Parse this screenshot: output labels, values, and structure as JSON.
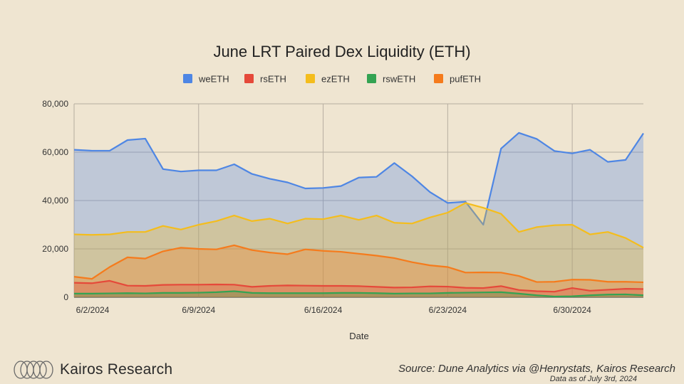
{
  "chart_data": {
    "type": "area",
    "title": "June LRT Paired Dex Liquidity (ETH)",
    "xlabel": "Date",
    "ylabel": "",
    "ylim": [
      0,
      80000
    ],
    "yticks": [
      0,
      20000,
      40000,
      60000,
      80000
    ],
    "ytick_labels": [
      "0",
      "20,000",
      "40,000",
      "60,000",
      "80,000"
    ],
    "xtick_labels": [
      "6/2/2024",
      "6/9/2024",
      "6/16/2024",
      "6/23/2024",
      "6/30/2024"
    ],
    "xtick_index": [
      0,
      7,
      14,
      21,
      28
    ],
    "x_count": 33,
    "legend_position": "top",
    "series": [
      {
        "name": "weETH",
        "color": "#4e86e4",
        "values": [
          61000,
          60600,
          60600,
          65000,
          65600,
          53000,
          52000,
          52500,
          52500,
          55000,
          51000,
          49000,
          47500,
          45000,
          45200,
          46000,
          49500,
          49800,
          55500,
          50000,
          43500,
          39000,
          39500,
          30000,
          61500,
          68000,
          65500,
          60500,
          59500,
          61000,
          56000,
          56800,
          67800
        ]
      },
      {
        "name": "rsETH",
        "color": "#e5493a",
        "values": [
          6000,
          5800,
          6800,
          4800,
          4700,
          5100,
          5200,
          5200,
          5300,
          5200,
          4300,
          4700,
          4900,
          4800,
          4700,
          4700,
          4600,
          4300,
          4000,
          4100,
          4500,
          4400,
          3900,
          3800,
          4600,
          3000,
          2500,
          2300,
          3800,
          2700,
          3100,
          3500,
          3400
        ]
      },
      {
        "name": "ezETH",
        "color": "#f4bd1d",
        "values": [
          26000,
          25800,
          26000,
          27000,
          27000,
          29500,
          28000,
          30000,
          31500,
          33800,
          31500,
          32500,
          30500,
          32500,
          32300,
          33800,
          32000,
          33800,
          30800,
          30500,
          33000,
          35000,
          39000,
          37000,
          34500,
          27000,
          29000,
          29800,
          30000,
          26000,
          27000,
          24500,
          20500
        ]
      },
      {
        "name": "rswETH",
        "color": "#34a352",
        "values": [
          1500,
          1500,
          1600,
          1700,
          1600,
          1800,
          1800,
          1900,
          2100,
          2500,
          1800,
          1700,
          1700,
          1700,
          1700,
          1800,
          1800,
          1700,
          1500,
          1600,
          1600,
          1800,
          1900,
          2000,
          2100,
          1500,
          800,
          300,
          400,
          800,
          1100,
          1200,
          800
        ]
      },
      {
        "name": "pufETH",
        "color": "#f57b1c",
        "values": [
          8500,
          7600,
          12500,
          16500,
          16000,
          19000,
          20500,
          20000,
          19800,
          21500,
          19500,
          18500,
          17800,
          19800,
          19200,
          18800,
          18000,
          17200,
          16200,
          14500,
          13200,
          12500,
          10200,
          10300,
          10200,
          8800,
          6300,
          6400,
          7300,
          7200,
          6400,
          6400,
          6200
        ]
      }
    ]
  },
  "footer": {
    "brand": "Kairos Research",
    "source": "Source: Dune Analytics via @Henrystats, Kairos Research",
    "as_of": "Data as of July 3rd, 2024"
  }
}
